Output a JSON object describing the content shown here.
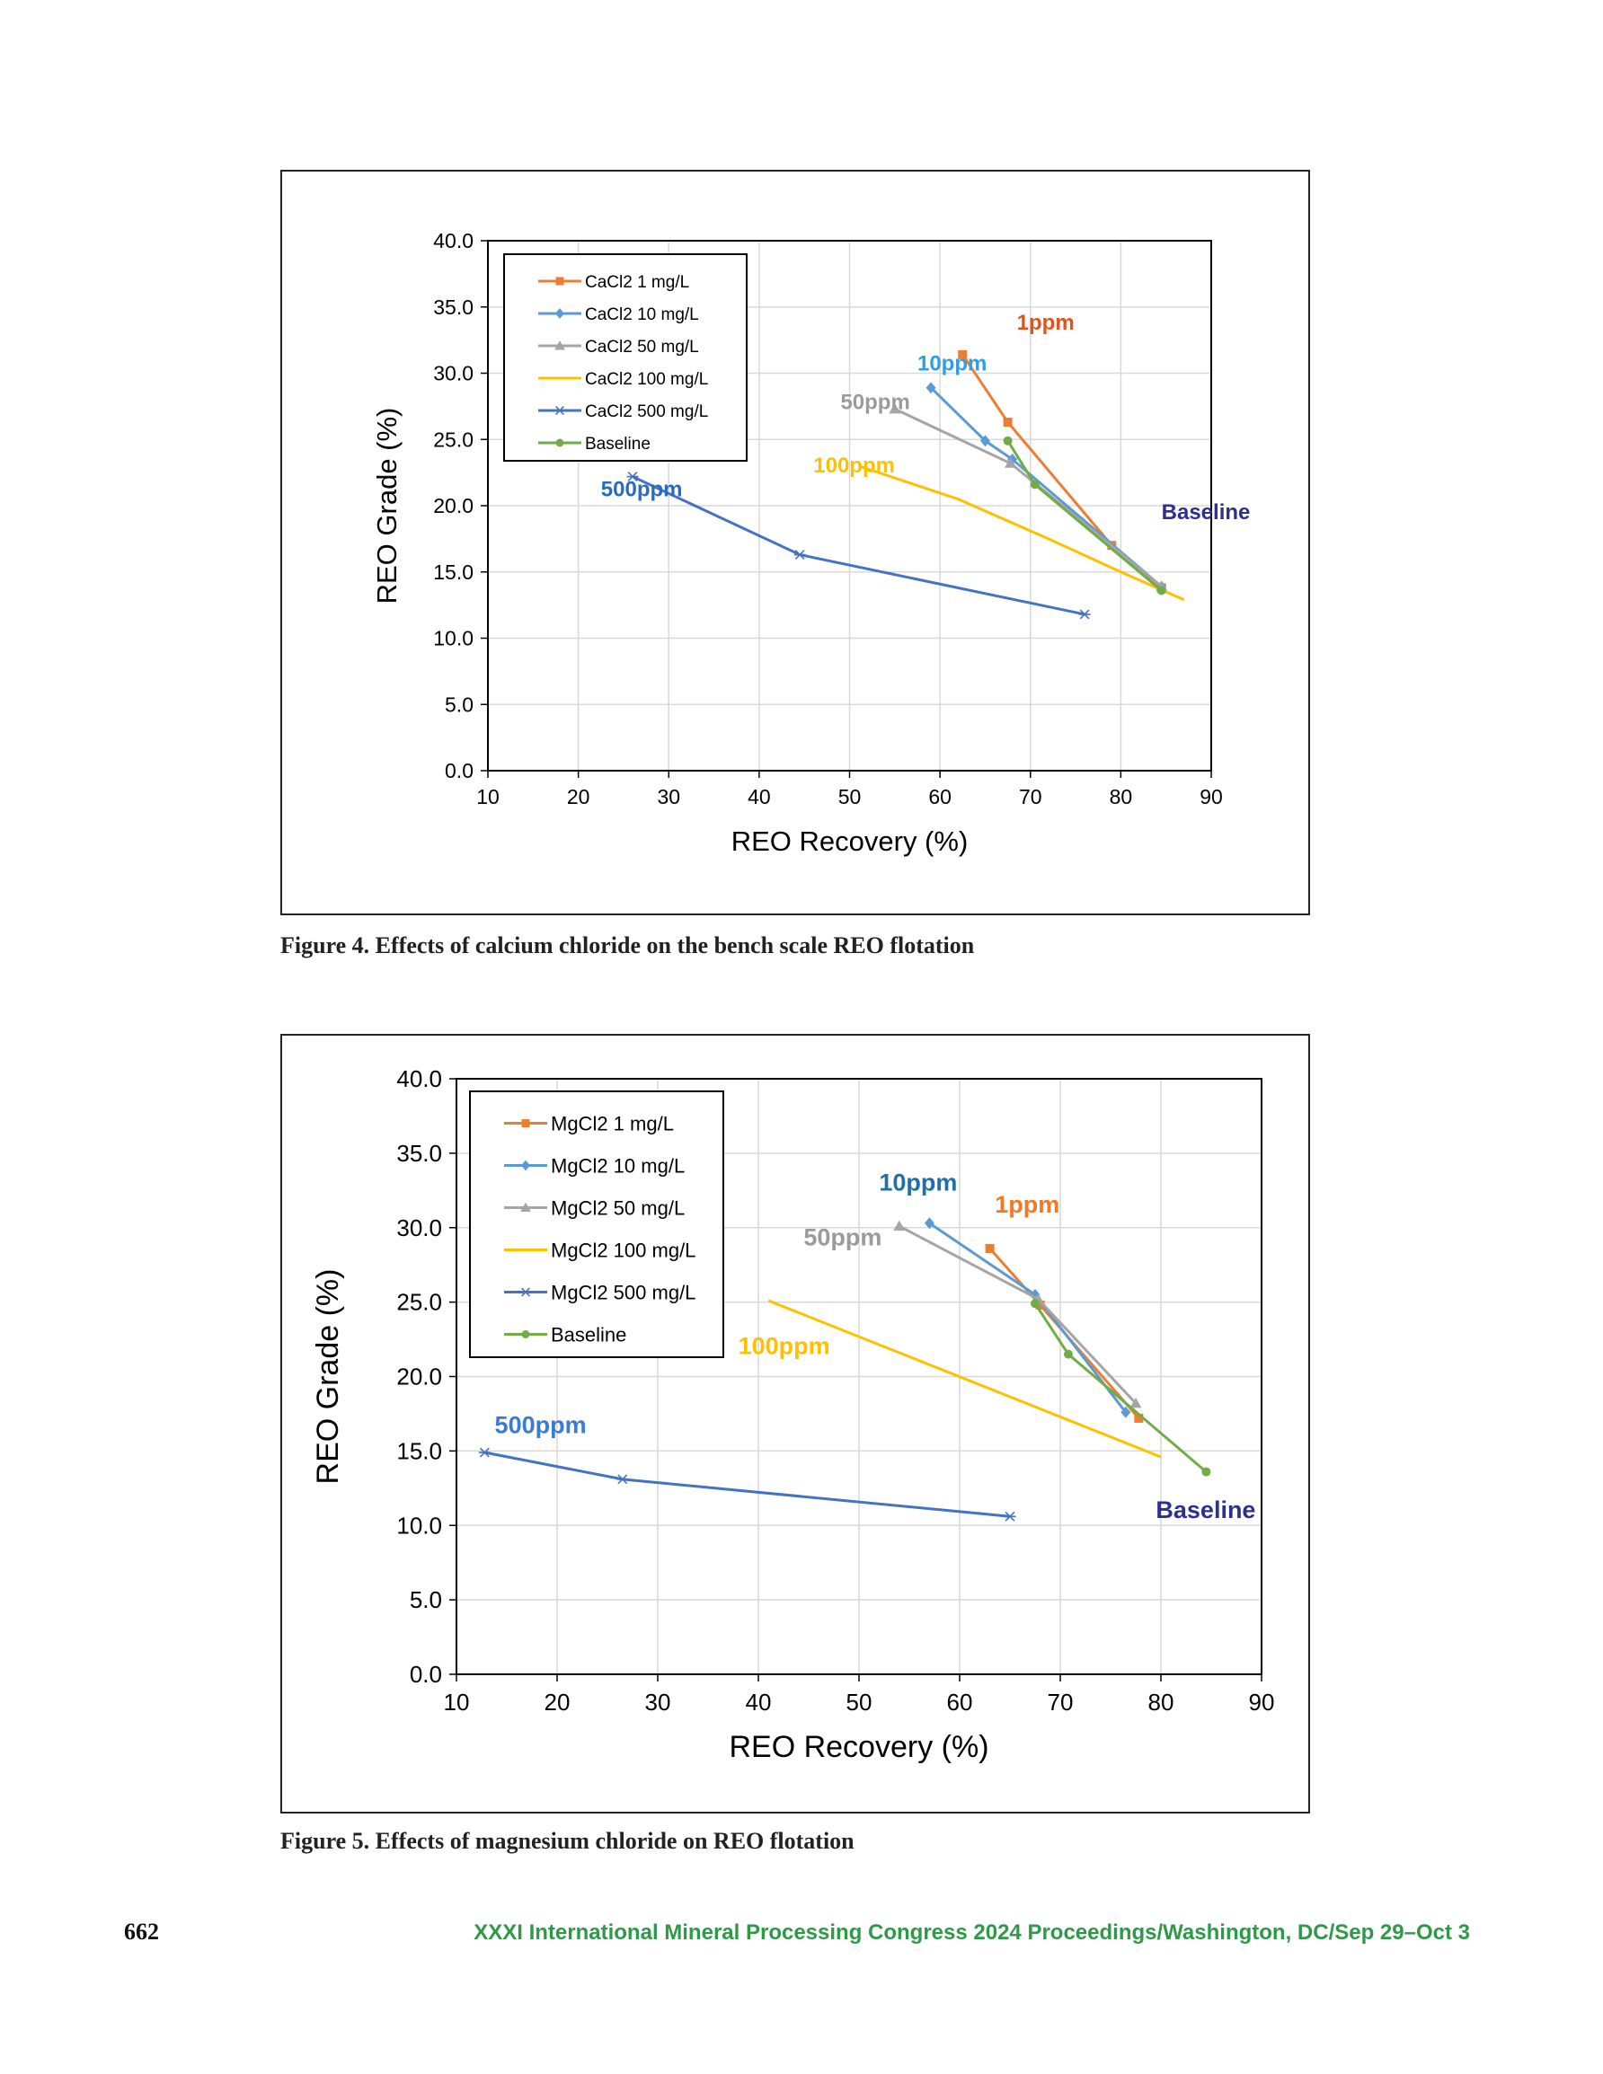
{
  "figures": [
    {
      "caption": "Figure 4. Effects of calcium chloride on the bench scale REO flotation",
      "chart_data": {
        "type": "line",
        "xlabel": "REO Recovery (%)",
        "ylabel": "REO Grade (%)",
        "xlim": [
          10,
          90
        ],
        "ylim": [
          0,
          40
        ],
        "x_ticks": [
          "10",
          "20",
          "30",
          "40",
          "50",
          "60",
          "70",
          "80",
          "90"
        ],
        "y_ticks": [
          "0.0",
          "5.0",
          "10.0",
          "15.0",
          "20.0",
          "25.0",
          "30.0",
          "35.0",
          "40.0"
        ],
        "grid": true,
        "legend_position": "top-left",
        "series": [
          {
            "name": "CaCl2 1 mg/L",
            "color": "#ed7d31",
            "marker": "square",
            "x": [
              62.5,
              67.5,
              79,
              84.5
            ],
            "y": [
              31.4,
              26.3,
              17.0,
              13.8
            ]
          },
          {
            "name": "CaCl2 10 mg/L",
            "color": "#5b9bd5",
            "marker": "diamond",
            "x": [
              59,
              65,
              68,
              84.5
            ],
            "y": [
              28.9,
              24.9,
              23.5,
              13.9
            ]
          },
          {
            "name": "CaCl2 50 mg/L",
            "color": "#a5a5a5",
            "marker": "triangle",
            "x": [
              55,
              67.8,
              84.5
            ],
            "y": [
              27.3,
              23.2,
              13.9
            ]
          },
          {
            "name": "CaCl2 100 mg/L",
            "color": "#ffc000",
            "marker": "none",
            "x": [
              51,
              62,
              72,
              80,
              87
            ],
            "y": [
              23.0,
              20.5,
              17.5,
              15.0,
              12.9
            ]
          },
          {
            "name": "CaCl2 500 mg/L",
            "color": "#4472c4",
            "marker": "star",
            "x": [
              26,
              44.5,
              76
            ],
            "y": [
              22.2,
              16.3,
              11.8
            ]
          },
          {
            "name": "Baseline",
            "color": "#70ad47",
            "marker": "circle",
            "x": [
              67.5,
              70.5,
              84.5
            ],
            "y": [
              24.9,
              21.6,
              13.6
            ]
          }
        ],
        "annotations": [
          {
            "text": "1ppm",
            "color": "#e2521d",
            "x": 68.5,
            "y": 33.3
          },
          {
            "text": "10ppm",
            "color": "#2f9ee6",
            "x": 57.5,
            "y": 30.2
          },
          {
            "text": "50ppm",
            "color": "#9b9b9b",
            "x": 49,
            "y": 27.3
          },
          {
            "text": "100ppm",
            "color": "#ffc000",
            "x": 46,
            "y": 22.5
          },
          {
            "text": "500ppm",
            "color": "#2a6bbf",
            "x": 22.5,
            "y": 20.7
          },
          {
            "text": "Baseline",
            "color": "#2e2f8e",
            "x": 84.5,
            "y": 19.0
          }
        ]
      }
    },
    {
      "caption": "Figure 5. Effects of magnesium chloride on REO flotation",
      "chart_data": {
        "type": "line",
        "xlabel": "REO Recovery (%)",
        "ylabel": "REO Grade (%)",
        "xlim": [
          10,
          90
        ],
        "ylim": [
          0,
          40
        ],
        "x_ticks": [
          "10",
          "20",
          "30",
          "40",
          "50",
          "60",
          "70",
          "80",
          "90"
        ],
        "y_ticks": [
          "0.0",
          "5.0",
          "10.0",
          "15.0",
          "20.0",
          "25.0",
          "30.0",
          "35.0",
          "40.0"
        ],
        "grid": true,
        "legend_position": "top-left",
        "series": [
          {
            "name": "MgCl2 1 mg/L",
            "color": "#ed7d31",
            "marker": "square",
            "x": [
              63,
              68,
              77.8
            ],
            "y": [
              28.6,
              24.8,
              17.2
            ]
          },
          {
            "name": "MgCl2 10 mg/L",
            "color": "#5b9bd5",
            "marker": "diamond",
            "x": [
              57,
              67.5,
              76.5
            ],
            "y": [
              30.3,
              25.5,
              17.6
            ]
          },
          {
            "name": "MgCl2 50 mg/L",
            "color": "#a5a5a5",
            "marker": "triangle",
            "x": [
              54,
              67.8,
              77.5
            ],
            "y": [
              30.1,
              25.2,
              18.2
            ]
          },
          {
            "name": "MgCl2 100 mg/L",
            "color": "#ffc000",
            "marker": "none",
            "x": [
              41,
              80
            ],
            "y": [
              25.1,
              14.6
            ]
          },
          {
            "name": "MgCl2 500 mg/L",
            "color": "#4472c4",
            "marker": "star",
            "x": [
              12.8,
              26.5,
              65
            ],
            "y": [
              14.9,
              13.1,
              10.6
            ]
          },
          {
            "name": "Baseline",
            "color": "#70ad47",
            "marker": "circle",
            "x": [
              67.5,
              70.8,
              84.5
            ],
            "y": [
              24.9,
              21.5,
              13.6
            ]
          }
        ],
        "annotations": [
          {
            "text": "10ppm",
            "color": "#1f6fa8",
            "x": 52,
            "y": 32.5
          },
          {
            "text": "1ppm",
            "color": "#f07a28",
            "x": 63.5,
            "y": 31.0
          },
          {
            "text": "50ppm",
            "color": "#9b9b9b",
            "x": 44.5,
            "y": 28.8
          },
          {
            "text": "100ppm",
            "color": "#ffc000",
            "x": 38,
            "y": 21.5
          },
          {
            "text": "500ppm",
            "color": "#3a7cd5",
            "x": 13.8,
            "y": 16.2
          },
          {
            "text": "Baseline",
            "color": "#2e2f8e",
            "x": 79.5,
            "y": 10.5
          }
        ]
      }
    }
  ],
  "footer": {
    "page_number": "662",
    "conference": "XXXI International Mineral Processing Congress 2024 Proceedings/Washington, DC/Sep 29–Oct 3"
  }
}
